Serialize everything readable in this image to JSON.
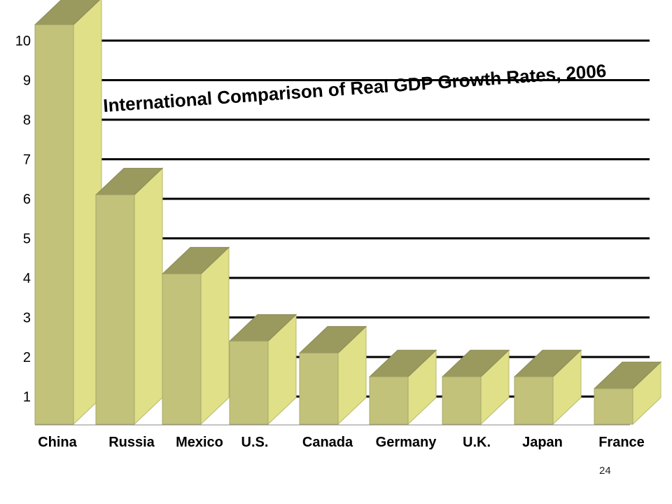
{
  "chart_data": {
    "type": "bar",
    "title": "International Comparison of Real GDP Growth Rates, 2006",
    "xlabel": "",
    "ylabel": "",
    "categories": [
      "China",
      "Russia",
      "Mexico",
      "U.S.",
      "Canada",
      "Germany",
      "U.K.",
      "Japan",
      "France"
    ],
    "values": [
      10.4,
      6.1,
      4.1,
      2.4,
      2.1,
      1.5,
      1.5,
      1.5,
      1.2
    ],
    "yticks": [
      "1",
      "2",
      "3",
      "4",
      "5",
      "6",
      "7",
      "8",
      "9",
      "10"
    ],
    "ylim": [
      0,
      10
    ],
    "grid": true,
    "style": "3d",
    "colors": {
      "front": "#c2c27a",
      "side": "#e0e089",
      "top": "#9a9a5f",
      "gridline": "#000000"
    }
  },
  "page_number": "24"
}
